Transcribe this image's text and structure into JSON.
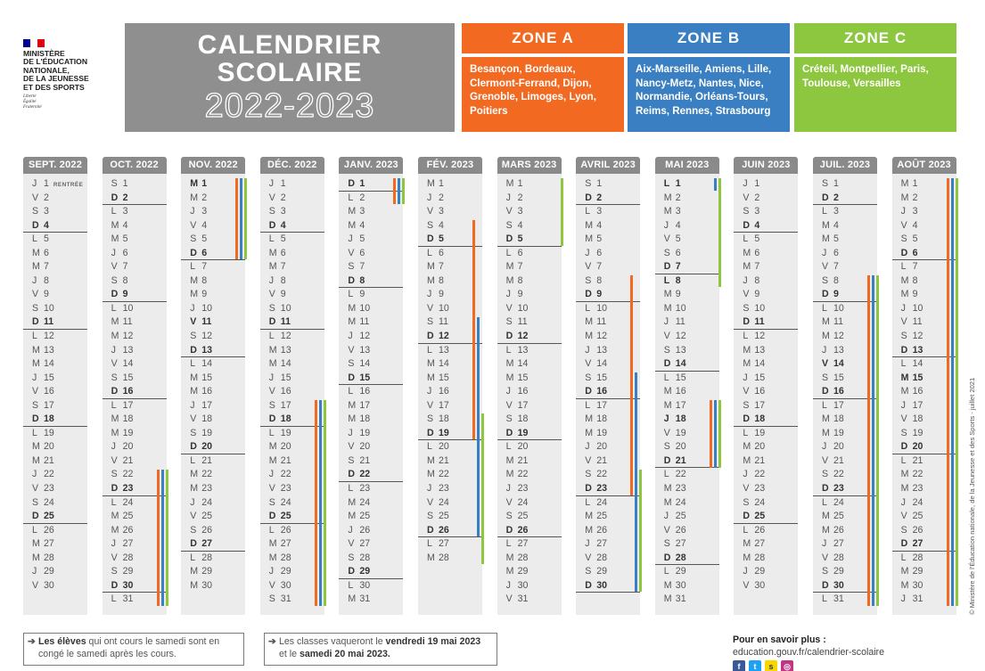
{
  "header": {
    "ministry_lines": [
      "MINISTÈRE",
      "DE L'ÉDUCATION",
      "NATIONALE,",
      "DE LA JEUNESSE",
      "ET DES SPORTS"
    ],
    "motto_lines": [
      "Liberté",
      "Égalité",
      "Fraternité"
    ],
    "flag_colors": [
      "#000091",
      "#ffffff",
      "#e1000f"
    ],
    "title_line1": "CALENDRIER",
    "title_line2": "SCOLAIRE",
    "title_years": "2022-2023"
  },
  "zones": [
    {
      "label": "ZONE A",
      "color": "#f26a22",
      "text": "Besançon, Bordeaux, Clermont-Ferrand, Dijon, Grenoble, Limoges, Lyon, Poitiers"
    },
    {
      "label": "ZONE B",
      "color": "#3a7fc1",
      "text": "Aix-Marseille, Amiens, Lille, Nancy-Metz, Nantes, Nice, Normandie, Orléans-Tours, Reims, Rennes, Strasbourg"
    },
    {
      "label": "ZONE C",
      "color": "#8dc63f",
      "text": "Créteil, Montpellier, Paris, Toulouse, Versailles"
    }
  ],
  "months": [
    {
      "label": "SEPT. 2022",
      "days": 30,
      "start": 3,
      "note_day": 1,
      "note": "RENTRÉE",
      "holidays": []
    },
    {
      "label": "OCT. 2022",
      "days": 31,
      "start": 5,
      "holidays": [
        [
          22,
          31,
          1
        ],
        [
          22,
          31,
          2
        ],
        [
          22,
          31,
          3
        ]
      ]
    },
    {
      "label": "NOV. 2022",
      "days": 30,
      "start": 1,
      "holidays": [
        [
          1,
          6,
          1
        ],
        [
          1,
          6,
          2
        ],
        [
          1,
          6,
          3
        ]
      ]
    },
    {
      "label": "DÉC. 2022",
      "days": 31,
      "start": 3,
      "holidays": [
        [
          17,
          31,
          1
        ],
        [
          17,
          31,
          2
        ],
        [
          17,
          31,
          3
        ]
      ]
    },
    {
      "label": "JANV. 2023",
      "days": 31,
      "start": 6,
      "holidays": [
        [
          1,
          2,
          1
        ],
        [
          1,
          2,
          2
        ],
        [
          1,
          2,
          3
        ]
      ]
    },
    {
      "label": "FÉV. 2023",
      "days": 28,
      "start": 2,
      "holidays": [
        [
          4,
          19,
          1
        ],
        [
          11,
          26,
          2
        ],
        [
          18,
          28,
          3
        ]
      ]
    },
    {
      "label": "MARS 2023",
      "days": 31,
      "start": 2,
      "holidays": [
        [
          1,
          5,
          3
        ]
      ]
    },
    {
      "label": "AVRIL 2023",
      "days": 30,
      "start": 5,
      "holidays": [
        [
          8,
          23,
          1
        ],
        [
          15,
          30,
          2
        ],
        [
          22,
          30,
          3
        ]
      ]
    },
    {
      "label": "MAI 2023",
      "days": 31,
      "start": 0,
      "holidays": [
        [
          1,
          1,
          2
        ],
        [
          1,
          8,
          3
        ],
        [
          17,
          21,
          1
        ],
        [
          17,
          21,
          2
        ],
        [
          17,
          21,
          3
        ]
      ]
    },
    {
      "label": "JUIN 2023",
      "days": 30,
      "start": 3,
      "holidays": []
    },
    {
      "label": "JUIL. 2023",
      "days": 31,
      "start": 5,
      "holidays": [
        [
          8,
          31,
          1
        ],
        [
          8,
          31,
          2
        ],
        [
          8,
          31,
          3
        ]
      ]
    },
    {
      "label": "AOÛT 2023",
      "days": 31,
      "start": 1,
      "holidays": [
        [
          1,
          31,
          1
        ],
        [
          1,
          31,
          2
        ],
        [
          1,
          31,
          3
        ]
      ]
    }
  ],
  "bold_days": {
    "JANV. 2023": [
      1
    ],
    "AVRIL 2023": [],
    "MAI 2023": [
      1,
      8,
      18
    ],
    "JUIL. 2023": [
      14
    ],
    "AOÛT 2023": [
      15
    ],
    "NOV. 2022": [
      1,
      11
    ]
  },
  "day_letters": [
    "L",
    "M",
    "M",
    "J",
    "V",
    "S",
    "D"
  ],
  "footer": {
    "box1_bold": "Les élèves",
    "box1_text": " qui ont cours le samedi sont en congé le samedi après les cours.",
    "box2_pre": "Les classes vaqueront le ",
    "box2_bold1": "vendredi 19 mai 2023",
    "box2_mid": " et le ",
    "box2_bold2": "samedi 20 mai 2023.",
    "info_title": "Pour en savoir plus :",
    "info_url": "education.gouv.fr/calendrier-scolaire",
    "social_icons": [
      "facebook-icon",
      "twitter-icon",
      "snapchat-icon",
      "instagram-icon"
    ],
    "copyright": "© Ministère de l'Éducation nationale, de la Jeunesse et des Sports - juillet 2021"
  }
}
